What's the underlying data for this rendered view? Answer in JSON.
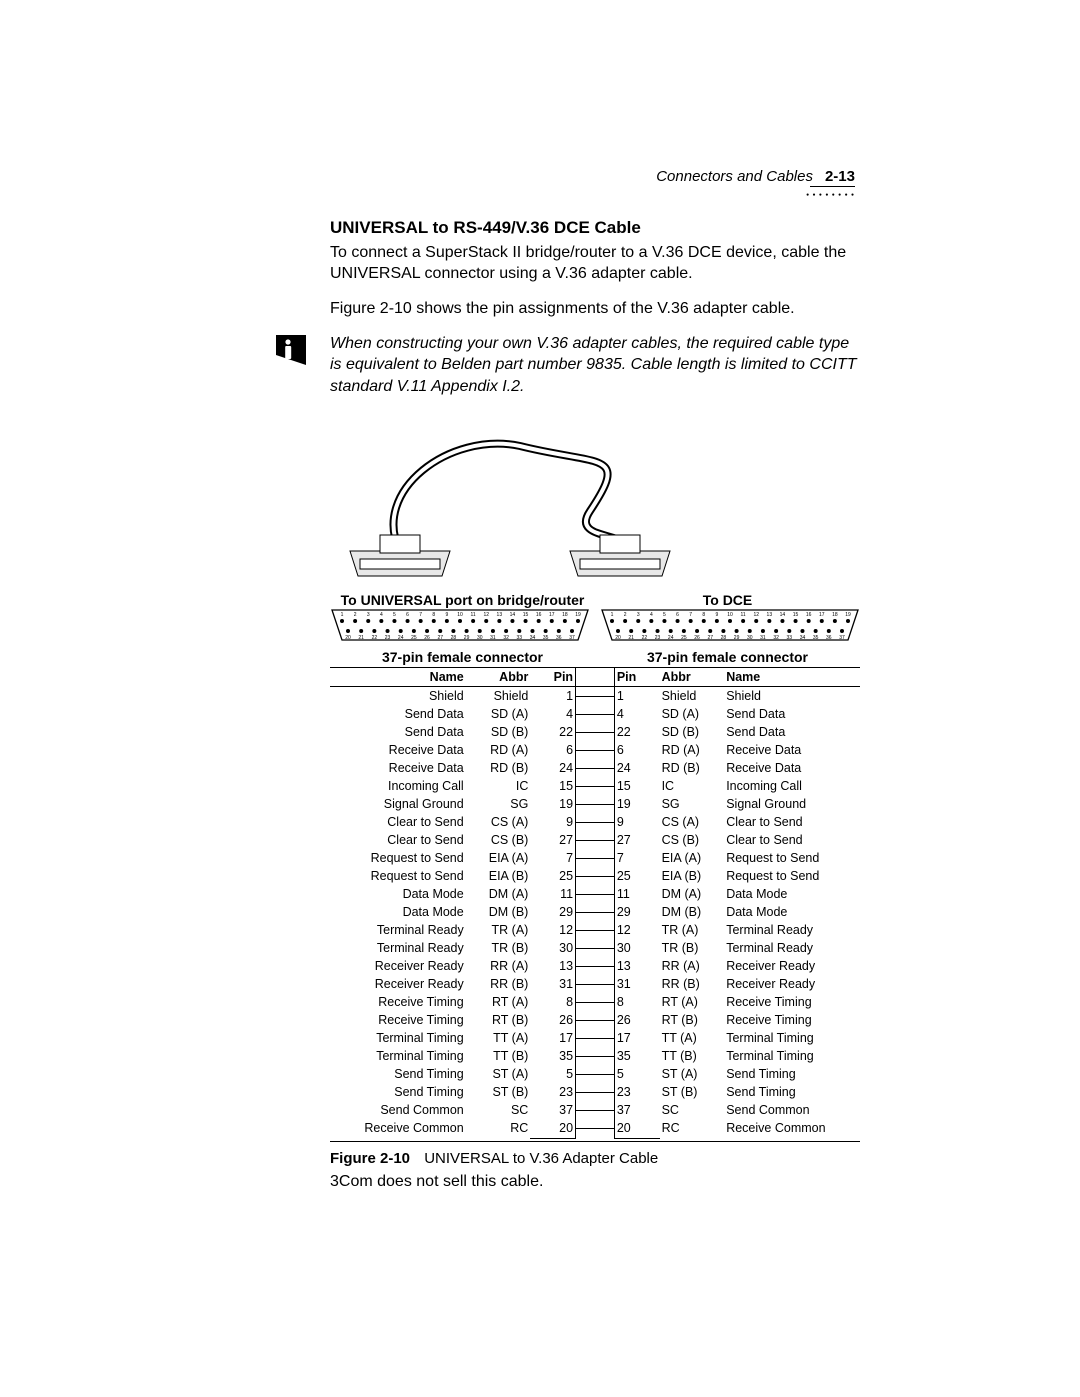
{
  "header": {
    "section_label": "Connectors and Cables",
    "page_number": "2-13"
  },
  "title": "UNIVERSAL to RS-449/V.36 DCE Cable",
  "para1": "To connect a SuperStack II bridge/router to a V.36 DCE device, cable the UNIVERSAL connector using a V.36 adapter cable.",
  "para2": "Figure 2-10 shows the pin assignments of the V.36 adapter cable.",
  "note": "When constructing your own V.36 adapter cables, the required cable type is equivalent to Belden part number 9835. Cable length is limited to CCITT standard V.11 Appendix I.2.",
  "conn_label_left": "To UNIVERSAL port on bridge/router",
  "conn_label_right": "To DCE",
  "sub_label_left": "37-pin female connector",
  "sub_label_right": "37-pin female connector",
  "table": {
    "headers": {
      "name_l": "Name",
      "abbr_l": "Abbr",
      "pin_l": "Pin",
      "pin_r": "Pin",
      "abbr_r": "Abbr",
      "name_r": "Name"
    },
    "rows": [
      {
        "nl": "Shield",
        "al": "Shield",
        "pl": "1",
        "pr": "1",
        "ar": "Shield",
        "nr": "Shield"
      },
      {
        "nl": "Send Data",
        "al": "SD (A)",
        "pl": "4",
        "pr": "4",
        "ar": "SD (A)",
        "nr": "Send Data"
      },
      {
        "nl": "Send Data",
        "al": "SD (B)",
        "pl": "22",
        "pr": "22",
        "ar": "SD (B)",
        "nr": "Send Data"
      },
      {
        "nl": "Receive Data",
        "al": "RD (A)",
        "pl": "6",
        "pr": "6",
        "ar": "RD (A)",
        "nr": "Receive Data"
      },
      {
        "nl": "Receive Data",
        "al": "RD (B)",
        "pl": "24",
        "pr": "24",
        "ar": "RD (B)",
        "nr": "Receive Data"
      },
      {
        "nl": "Incoming Call",
        "al": "IC",
        "pl": "15",
        "pr": "15",
        "ar": "IC",
        "nr": "Incoming Call"
      },
      {
        "nl": "Signal Ground",
        "al": "SG",
        "pl": "19",
        "pr": "19",
        "ar": "SG",
        "nr": "Signal Ground"
      },
      {
        "nl": "Clear to Send",
        "al": "CS (A)",
        "pl": "9",
        "pr": "9",
        "ar": "CS (A)",
        "nr": "Clear to Send"
      },
      {
        "nl": "Clear to Send",
        "al": "CS (B)",
        "pl": "27",
        "pr": "27",
        "ar": "CS (B)",
        "nr": "Clear to Send"
      },
      {
        "nl": "Request to Send",
        "al": "EIA (A)",
        "pl": "7",
        "pr": "7",
        "ar": "EIA (A)",
        "nr": "Request to Send"
      },
      {
        "nl": "Request to Send",
        "al": "EIA (B)",
        "pl": "25",
        "pr": "25",
        "ar": "EIA (B)",
        "nr": "Request to Send"
      },
      {
        "nl": "Data Mode",
        "al": "DM (A)",
        "pl": "11",
        "pr": "11",
        "ar": "DM (A)",
        "nr": "Data Mode"
      },
      {
        "nl": "Data Mode",
        "al": "DM (B)",
        "pl": "29",
        "pr": "29",
        "ar": "DM (B)",
        "nr": "Data Mode"
      },
      {
        "nl": "Terminal Ready",
        "al": "TR (A)",
        "pl": "12",
        "pr": "12",
        "ar": "TR (A)",
        "nr": "Terminal Ready"
      },
      {
        "nl": "Terminal Ready",
        "al": "TR (B)",
        "pl": "30",
        "pr": "30",
        "ar": "TR (B)",
        "nr": "Terminal Ready"
      },
      {
        "nl": "Receiver Ready",
        "al": "RR (A)",
        "pl": "13",
        "pr": "13",
        "ar": "RR (A)",
        "nr": "Receiver Ready"
      },
      {
        "nl": "Receiver Ready",
        "al": "RR (B)",
        "pl": "31",
        "pr": "31",
        "ar": "RR (B)",
        "nr": "Receiver Ready"
      },
      {
        "nl": "Receive Timing",
        "al": "RT (A)",
        "pl": "8",
        "pr": "8",
        "ar": "RT (A)",
        "nr": "Receive Timing"
      },
      {
        "nl": "Receive Timing",
        "al": "RT (B)",
        "pl": "26",
        "pr": "26",
        "ar": "RT (B)",
        "nr": "Receive Timing"
      },
      {
        "nl": "Terminal Timing",
        "al": "TT (A)",
        "pl": "17",
        "pr": "17",
        "ar": "TT (A)",
        "nr": "Terminal Timing"
      },
      {
        "nl": "Terminal Timing",
        "al": "TT (B)",
        "pl": "35",
        "pr": "35",
        "ar": "TT (B)",
        "nr": "Terminal Timing"
      },
      {
        "nl": "Send Timing",
        "al": "ST (A)",
        "pl": "5",
        "pr": "5",
        "ar": "ST (A)",
        "nr": "Send Timing"
      },
      {
        "nl": "Send Timing",
        "al": "ST (B)",
        "pl": "23",
        "pr": "23",
        "ar": "ST (B)",
        "nr": "Send Timing"
      },
      {
        "nl": "Send Common",
        "al": "SC",
        "pl": "37",
        "pr": "37",
        "ar": "SC",
        "nr": "Send Common"
      },
      {
        "nl": "Receive Common",
        "al": "RC",
        "pl": "20",
        "pr": "20",
        "ar": "RC",
        "nr": "Receive Common"
      }
    ]
  },
  "figure": {
    "label": "Figure 2-10",
    "caption": "UNIVERSAL to V.36 Adapter Cable"
  },
  "footer_note": "3Com does not sell this cable.",
  "colors": {
    "text": "#000000",
    "background": "#ffffff",
    "rule": "#000000"
  },
  "fonts": {
    "body_family": "Arial, Helvetica, sans-serif",
    "body_size_pt": 12,
    "title_size_pt": 13,
    "table_size_pt": 9.5
  }
}
